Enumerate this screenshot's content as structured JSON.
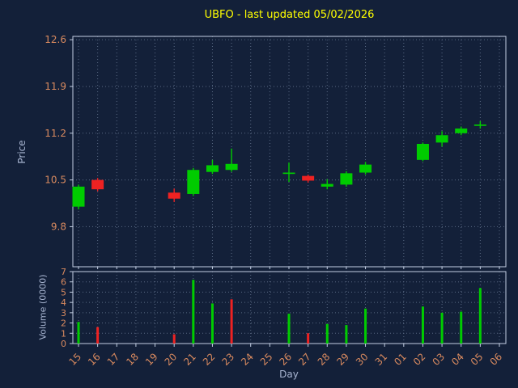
{
  "colors": {
    "background": "#132039",
    "title": "#ffff00",
    "axis_label": "#a7b4d0",
    "tick_label": "#d98a5f",
    "spine": "#c3cee2",
    "grid": "#93a5c0",
    "up": "#00cc00",
    "down": "#ee2222"
  },
  "chart_data": {
    "type": "candlestick",
    "title": "UBFO - last updated 05/02/2026",
    "xlabel": "Day",
    "ylabel_price": "Price",
    "ylabel_volume": "Volume (0000)",
    "x_categories": [
      "15",
      "16",
      "17",
      "18",
      "19",
      "20",
      "21",
      "22",
      "23",
      "24",
      "25",
      "26",
      "27",
      "28",
      "29",
      "30",
      "31",
      "01",
      "02",
      "03",
      "04",
      "05",
      "06"
    ],
    "price_axis": {
      "ticks": [
        9.8,
        10.5,
        11.2,
        11.9,
        12.6
      ],
      "range": [
        9.2,
        12.65
      ]
    },
    "volume_axis": {
      "ticks": [
        0,
        1,
        2,
        3,
        4,
        5,
        6,
        7
      ],
      "range": [
        0,
        7
      ]
    },
    "grid": true,
    "legend": "none",
    "candles": [
      {
        "day": "15",
        "i": 0,
        "open": 10.1,
        "high": 10.43,
        "low": 10.06,
        "close": 10.4,
        "volume": 2.1
      },
      {
        "day": "16",
        "i": 1,
        "open": 10.5,
        "high": 10.53,
        "low": 10.33,
        "close": 10.36,
        "volume": 1.6
      },
      {
        "day": "20",
        "i": 5,
        "open": 10.31,
        "high": 10.37,
        "low": 10.17,
        "close": 10.22,
        "volume": 0.9
      },
      {
        "day": "21",
        "i": 6,
        "open": 10.29,
        "high": 10.68,
        "low": 10.26,
        "close": 10.65,
        "volume": 6.2
      },
      {
        "day": "22",
        "i": 7,
        "open": 10.62,
        "high": 10.8,
        "low": 10.59,
        "close": 10.72,
        "volume": 3.9
      },
      {
        "day": "23",
        "i": 8,
        "open": 10.65,
        "high": 10.97,
        "low": 10.62,
        "close": 10.74,
        "volume": 4.3,
        "volume_dir": "down"
      },
      {
        "day": "26",
        "i": 11,
        "open": 10.59,
        "high": 10.76,
        "low": 10.47,
        "close": 10.61,
        "volume": 2.9
      },
      {
        "day": "27",
        "i": 12,
        "open": 10.56,
        "high": 10.58,
        "low": 10.46,
        "close": 10.49,
        "volume": 1.0,
        "volume_dir": "down"
      },
      {
        "day": "28",
        "i": 13,
        "open": 10.4,
        "high": 10.51,
        "low": 10.36,
        "close": 10.44,
        "volume": 1.9
      },
      {
        "day": "29",
        "i": 14,
        "open": 10.43,
        "high": 10.63,
        "low": 10.4,
        "close": 10.6,
        "volume": 1.8
      },
      {
        "day": "30",
        "i": 15,
        "open": 10.61,
        "high": 10.77,
        "low": 10.58,
        "close": 10.73,
        "volume": 3.4
      },
      {
        "day": "02",
        "i": 18,
        "open": 10.8,
        "high": 11.06,
        "low": 10.78,
        "close": 11.04,
        "volume": 3.6
      },
      {
        "day": "03",
        "i": 19,
        "open": 11.06,
        "high": 11.23,
        "low": 11.0,
        "close": 11.17,
        "volume": 3.0
      },
      {
        "day": "04",
        "i": 20,
        "open": 11.2,
        "high": 11.3,
        "low": 11.17,
        "close": 11.27,
        "volume": 3.1
      },
      {
        "day": "05",
        "i": 21,
        "open": 11.31,
        "high": 11.38,
        "low": 11.27,
        "close": 11.33,
        "volume": 5.4
      }
    ]
  }
}
